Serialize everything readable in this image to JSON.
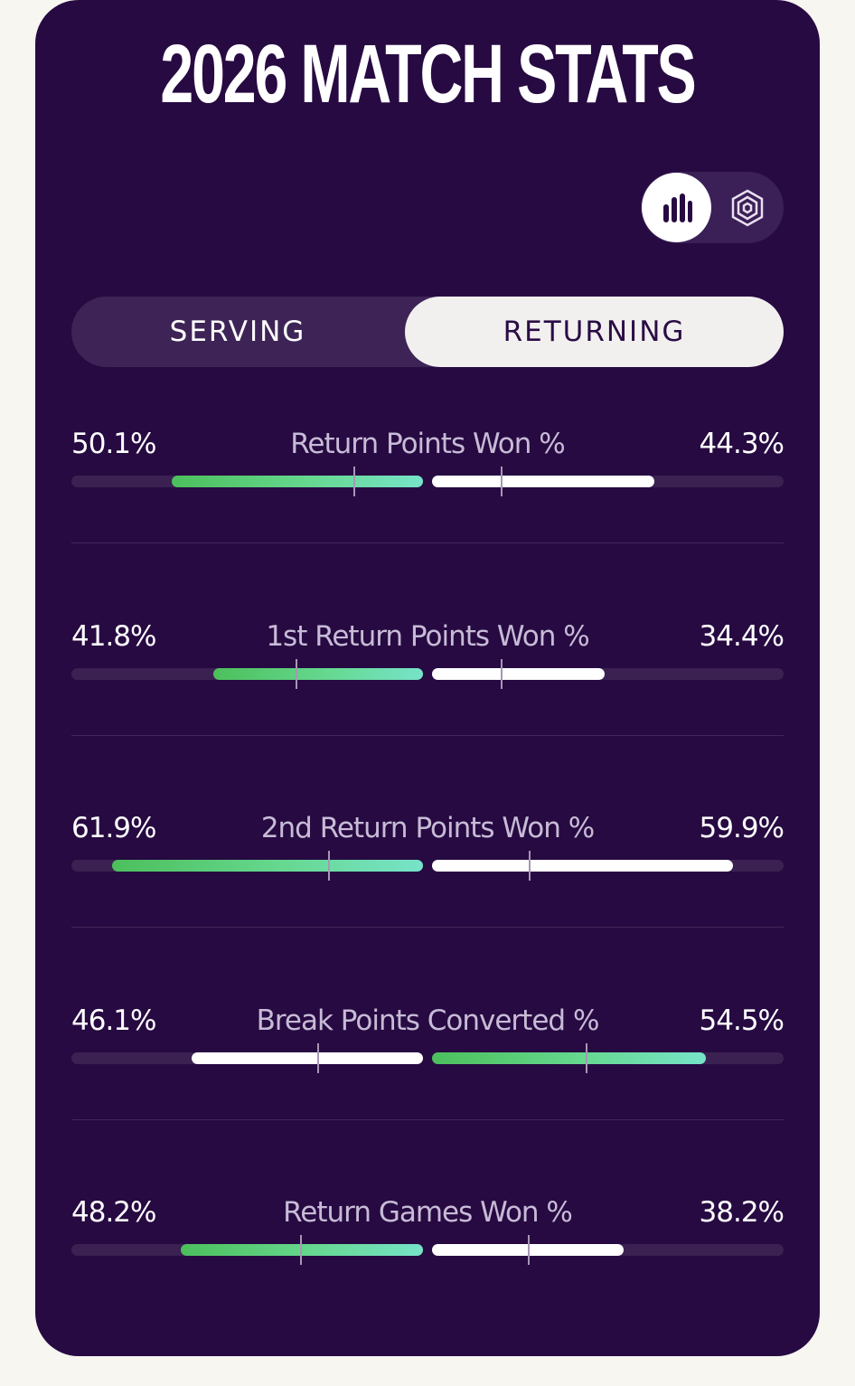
{
  "header": {
    "title": "2026 MATCH STATS"
  },
  "view_toggle": {
    "options": [
      {
        "icon": "bar-chart-icon",
        "active": true
      },
      {
        "icon": "hexagon-radar-icon",
        "active": false
      }
    ]
  },
  "tabs": [
    {
      "label": "SERVING",
      "active": false
    },
    {
      "label": "RETURNING",
      "active": true
    }
  ],
  "colors": {
    "background": "#270a42",
    "accent_green": "#5fd07a",
    "accent_teal": "#77e3c9",
    "bar_white": "#ffffff",
    "track": "#3a2152"
  },
  "stats": [
    {
      "label": "Return Points Won %",
      "left": {
        "value_text": "50.1%",
        "value": 50.1,
        "tick": 0.27,
        "color": "green"
      },
      "right": {
        "value_text": "44.3%",
        "value": 44.3,
        "tick": 0.69,
        "color": "white"
      }
    },
    {
      "label": "1st Return Points Won %",
      "left": {
        "value_text": "41.8%",
        "value": 41.8,
        "tick": 0.6,
        "color": "green"
      },
      "right": {
        "value_text": "34.4%",
        "value": 34.4,
        "tick": 0.6,
        "color": "white"
      }
    },
    {
      "label": "2nd Return Points Won %",
      "left": {
        "value_text": "61.9%",
        "value": 61.9,
        "tick": 0.3,
        "color": "green"
      },
      "right": {
        "value_text": "59.9%",
        "value": 59.9,
        "tick": 0.68,
        "color": "white"
      }
    },
    {
      "label": "Break Points Converted %",
      "left": {
        "value_text": "46.1%",
        "value": 46.1,
        "tick": 0.45,
        "color": "white"
      },
      "right": {
        "value_text": "54.5%",
        "value": 54.5,
        "tick": 0.44,
        "color": "green"
      }
    },
    {
      "label": "Return Games Won %",
      "left": {
        "value_text": "48.2%",
        "value": 48.2,
        "tick": 0.5,
        "color": "green"
      },
      "right": {
        "value_text": "38.2%",
        "value": 38.2,
        "tick": 0.5,
        "color": "white"
      }
    }
  ]
}
